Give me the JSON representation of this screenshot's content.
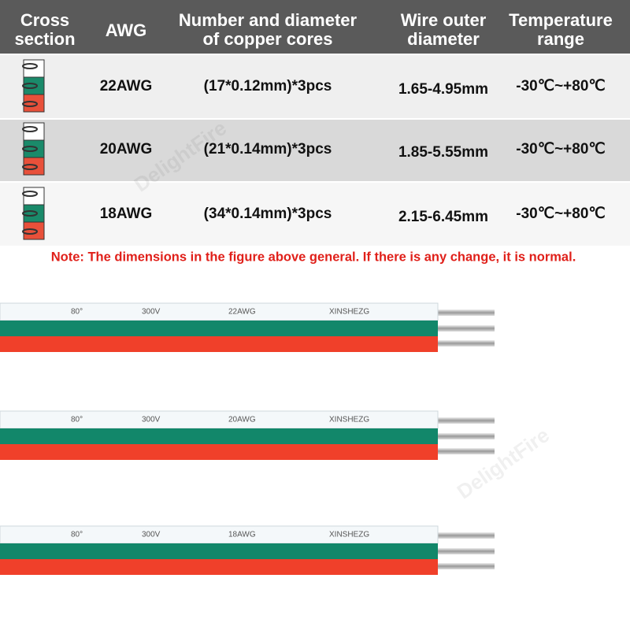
{
  "header": {
    "columns": [
      [
        "Cross",
        "section"
      ],
      [
        "AWG"
      ],
      [
        "Number and diameter",
        "of copper cores"
      ],
      [
        "Wire outer",
        "diameter"
      ],
      [
        "Temperature",
        "range"
      ]
    ]
  },
  "table": {
    "rows": [
      [
        "22AWG",
        "(17*0.12mm)*3pcs",
        "1.65-4.95mm",
        "-30℃~+80℃"
      ],
      [
        "20AWG",
        "(21*0.14mm)*3pcs",
        "1.85-5.55mm",
        "-30℃~+80℃"
      ],
      [
        "18AWG",
        "(34*0.14mm)*3pcs",
        "2.15-6.45mm",
        "-30℃~+80℃"
      ]
    ]
  },
  "note": "Note: The dimensions in the figure above general. If there is any change, it is normal.",
  "wires": [
    [
      "80°",
      "300V",
      "22AWG",
      "XINSHEZG"
    ],
    [
      "80°",
      "300V",
      "20AWG",
      "XINSHEZG"
    ],
    [
      "80°",
      "300V",
      "18AWG",
      "XINSHEZG"
    ]
  ],
  "watermark": "DelightFire"
}
